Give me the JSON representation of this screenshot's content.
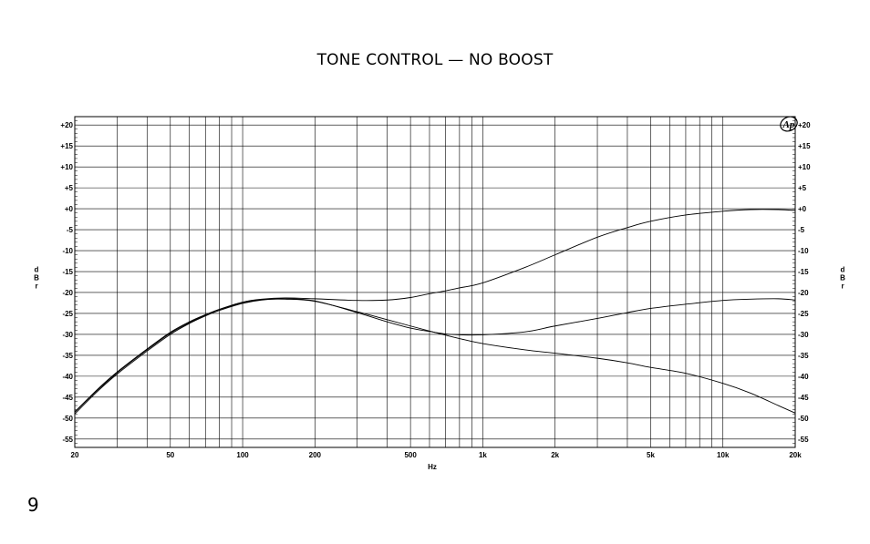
{
  "page": {
    "title": "TONE CONTROL — NO BOOST",
    "page_number": "9"
  },
  "chart_data": {
    "type": "line",
    "title": "TONE CONTROL — NO BOOST",
    "xlabel": "Hz",
    "ylabel": "dBr",
    "ylabel_chars": [
      "d",
      "B",
      "r"
    ],
    "x_scale": "log",
    "xlim": [
      20,
      20000
    ],
    "ylim": [
      -57,
      22
    ],
    "grid": true,
    "legend": "none",
    "x_ticks": [
      {
        "value": 20,
        "label": "20"
      },
      {
        "value": 50,
        "label": "50"
      },
      {
        "value": 100,
        "label": "100"
      },
      {
        "value": 200,
        "label": "200"
      },
      {
        "value": 500,
        "label": "500"
      },
      {
        "value": 1000,
        "label": "1k"
      },
      {
        "value": 2000,
        "label": "2k"
      },
      {
        "value": 5000,
        "label": "5k"
      },
      {
        "value": 10000,
        "label": "10k"
      },
      {
        "value": 20000,
        "label": "20k"
      }
    ],
    "x_gridlines": [
      20,
      30,
      40,
      50,
      60,
      70,
      80,
      90,
      100,
      200,
      300,
      400,
      500,
      600,
      700,
      800,
      900,
      1000,
      2000,
      3000,
      4000,
      5000,
      6000,
      7000,
      8000,
      9000,
      10000,
      20000
    ],
    "y_ticks": [
      {
        "value": 20,
        "label": "+20"
      },
      {
        "value": 15,
        "label": "+15"
      },
      {
        "value": 10,
        "label": "+10"
      },
      {
        "value": 5,
        "label": "+5"
      },
      {
        "value": 0,
        "label": "+0"
      },
      {
        "value": -5,
        "label": "-5"
      },
      {
        "value": -10,
        "label": "-10"
      },
      {
        "value": -15,
        "label": "-15"
      },
      {
        "value": -20,
        "label": "-20"
      },
      {
        "value": -25,
        "label": "-25"
      },
      {
        "value": -30,
        "label": "-30"
      },
      {
        "value": -35,
        "label": "-35"
      },
      {
        "value": -40,
        "label": "-40"
      },
      {
        "value": -45,
        "label": "-45"
      },
      {
        "value": -50,
        "label": "-50"
      },
      {
        "value": -55,
        "label": "-55"
      }
    ],
    "series": [
      {
        "color": "#000000",
        "x": [
          20,
          25,
          30,
          40,
          50,
          60,
          70,
          80,
          100,
          120,
          150,
          200,
          300,
          400,
          500,
          600,
          700,
          800,
          1000,
          1500,
          2000,
          3000,
          4000,
          5000,
          7000,
          10000,
          13000,
          17000,
          20000
        ],
        "values": [
          -48.5,
          -43,
          -39,
          -33.5,
          -29.5,
          -27,
          -25.3,
          -24,
          -22.3,
          -21.6,
          -21.3,
          -21.5,
          -21.9,
          -21.8,
          -21.2,
          -20.3,
          -19.6,
          -18.9,
          -17.7,
          -14,
          -11,
          -6.8,
          -4.5,
          -3,
          -1.5,
          -0.6,
          -0.2,
          -0.2,
          -0.4
        ]
      },
      {
        "color": "#000000",
        "x": [
          20,
          25,
          30,
          40,
          50,
          60,
          70,
          80,
          100,
          120,
          150,
          200,
          300,
          400,
          500,
          600,
          700,
          800,
          1000,
          1500,
          2000,
          3000,
          4000,
          5000,
          7000,
          10000,
          13000,
          17000,
          20000
        ],
        "values": [
          -49,
          -43.5,
          -39.5,
          -34,
          -30,
          -27.4,
          -25.6,
          -24.3,
          -22.6,
          -21.8,
          -21.5,
          -22,
          -24.8,
          -27,
          -28.5,
          -29.3,
          -29.9,
          -30.1,
          -30.1,
          -29.4,
          -28,
          -26.2,
          -24.8,
          -23.8,
          -22.8,
          -21.9,
          -21.6,
          -21.5,
          -21.8
        ]
      },
      {
        "color": "#000000",
        "x": [
          20,
          25,
          30,
          40,
          50,
          60,
          70,
          80,
          100,
          120,
          150,
          200,
          300,
          400,
          500,
          600,
          700,
          800,
          1000,
          1500,
          2000,
          3000,
          4000,
          5000,
          7000,
          10000,
          13000,
          17000,
          20000
        ],
        "values": [
          -48.6,
          -43.2,
          -39.2,
          -33.7,
          -29.7,
          -27.2,
          -25.4,
          -24.1,
          -22.5,
          -21.7,
          -21.6,
          -22.1,
          -24.6,
          -26.5,
          -28,
          -29.2,
          -30.2,
          -31,
          -32.2,
          -33.7,
          -34.5,
          -35.7,
          -36.8,
          -37.9,
          -39.3,
          -41.7,
          -44,
          -47,
          -48.8
        ]
      }
    ]
  }
}
